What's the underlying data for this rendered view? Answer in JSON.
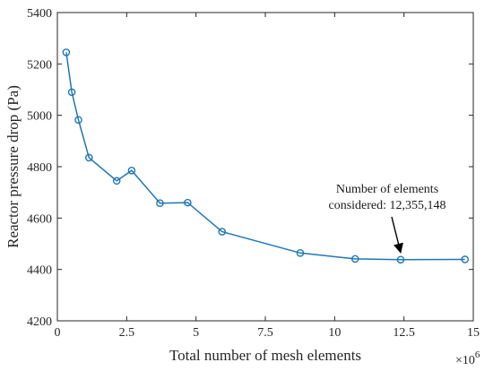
{
  "chart_data": {
    "type": "line",
    "title": "",
    "xlabel": "Total number of mesh elements",
    "ylabel": "Reactor pressure drop (Pa)",
    "x_scale_label": "×10",
    "x_scale_exponent": "6",
    "xlim": [
      0,
      15
    ],
    "ylim": [
      4200,
      5400
    ],
    "x_ticks": [
      0,
      2.5,
      5,
      7.5,
      10,
      12.5,
      15
    ],
    "x_tick_labels": [
      "0",
      "2.5",
      "5",
      "7.5",
      "10",
      "12.5",
      "15"
    ],
    "y_ticks": [
      4200,
      4400,
      4600,
      4800,
      5000,
      5200,
      5400
    ],
    "y_tick_labels": [
      "4200",
      "4400",
      "4600",
      "4800",
      "5000",
      "5200",
      "5400"
    ],
    "grid": false,
    "series": [
      {
        "color": "#1f77b4",
        "marker": "circle",
        "x": [
          0.32,
          0.52,
          0.76,
          1.14,
          2.14,
          2.68,
          3.7,
          4.7,
          5.94,
          8.76,
          10.74,
          12.38,
          14.7
        ],
        "y": [
          5245,
          5090,
          4982,
          4835,
          4745,
          4785,
          4658,
          4660,
          4547,
          4464,
          4441,
          4438,
          4439
        ]
      }
    ],
    "annotation": {
      "line1": "Number of elements",
      "line2": "considered: 12,355,148",
      "target_x": 12.38,
      "target_y": 4438
    }
  }
}
